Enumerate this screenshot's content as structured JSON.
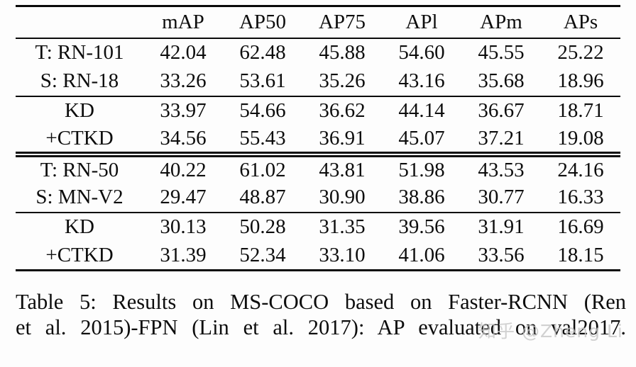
{
  "table": {
    "columns": [
      "",
      "mAP",
      "AP50",
      "AP75",
      "APl",
      "APm",
      "APs"
    ],
    "sections": [
      {
        "groups": [
          {
            "rows": [
              {
                "label": "T: RN-101",
                "values": [
                  "42.04",
                  "62.48",
                  "45.88",
                  "54.60",
                  "45.55",
                  "25.22"
                ]
              },
              {
                "label": "S: RN-18",
                "values": [
                  "33.26",
                  "53.61",
                  "35.26",
                  "43.16",
                  "35.68",
                  "18.96"
                ]
              }
            ]
          },
          {
            "rows": [
              {
                "label": "KD",
                "values": [
                  "33.97",
                  "54.66",
                  "36.62",
                  "44.14",
                  "36.67",
                  "18.71"
                ]
              },
              {
                "label": "+CTKD",
                "values": [
                  "34.56",
                  "55.43",
                  "36.91",
                  "45.07",
                  "37.21",
                  "19.08"
                ]
              }
            ]
          }
        ]
      },
      {
        "groups": [
          {
            "rows": [
              {
                "label": "T: RN-50",
                "values": [
                  "40.22",
                  "61.02",
                  "43.81",
                  "51.98",
                  "43.53",
                  "24.16"
                ]
              },
              {
                "label": "S: MN-V2",
                "values": [
                  "29.47",
                  "48.87",
                  "30.90",
                  "38.86",
                  "30.77",
                  "16.33"
                ]
              }
            ]
          },
          {
            "rows": [
              {
                "label": "KD",
                "values": [
                  "30.13",
                  "50.28",
                  "31.35",
                  "39.56",
                  "31.91",
                  "16.69"
                ]
              },
              {
                "label": "+CTKD",
                "values": [
                  "31.39",
                  "52.34",
                  "33.10",
                  "41.06",
                  "33.56",
                  "18.15"
                ]
              }
            ]
          }
        ]
      }
    ]
  },
  "caption": {
    "line1": "Table 5: Results on MS-COCO based on Faster-RCNN (Ren",
    "line2": "et al. 2015)-FPN (Lin et al. 2017): AP evaluated on val2017."
  },
  "watermark": {
    "text": "知乎 @Zheng Li",
    "color": "#c7c7c7"
  }
}
